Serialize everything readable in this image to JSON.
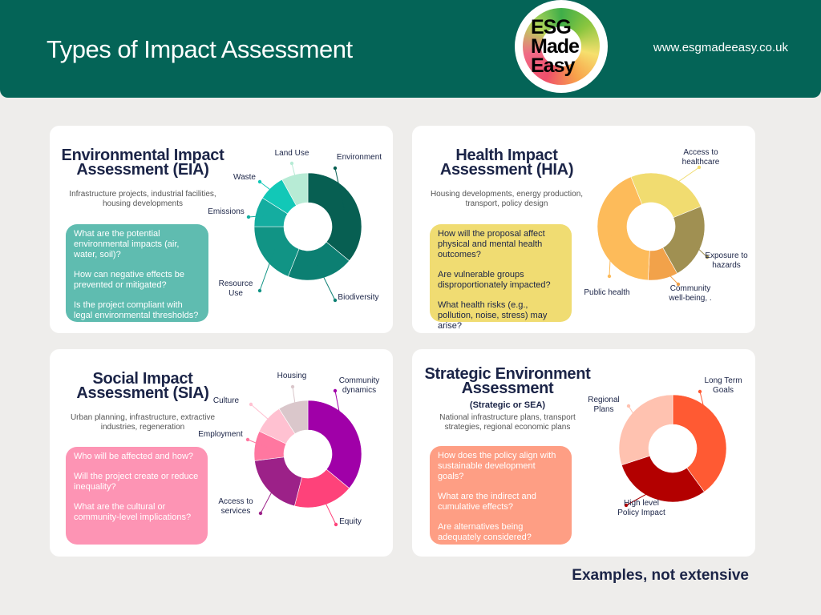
{
  "header": {
    "title": "Types of Impact Assessment",
    "url": "www.esgmadeeasy.co.uk",
    "logo_text": "ESG Made Easy",
    "background": "#046457"
  },
  "cards": [
    {
      "title": "Environmental Impact Assessment (EIA)",
      "note": "",
      "subtitle": "Infrastructure projects, industrial facilities, housing developments",
      "box_color": "#5fbcb0",
      "questions": [
        "What are the potential environmental impacts (air, water, soil)?",
        "How can negative effects be prevented or mitigated?",
        "Is the project compliant with legal environmental thresholds?"
      ],
      "chart": {
        "type": "donut",
        "start_angle": 0,
        "segments": [
          {
            "label": "Environment",
            "share": 0.36,
            "color": "#075f52"
          },
          {
            "label": "Biodiversity",
            "share": 0.2,
            "color": "#0c7f72"
          },
          {
            "label": "Resource Use",
            "share": 0.19,
            "color": "#119485"
          },
          {
            "label": "Emissions",
            "share": 0.09,
            "color": "#14ada0"
          },
          {
            "label": "Waste",
            "share": 0.08,
            "color": "#12c8b7"
          },
          {
            "label": "Land Use",
            "share": 0.08,
            "color": "#b7ebd5"
          }
        ]
      }
    },
    {
      "title": "Health Impact Assessment (HIA)",
      "note": "",
      "subtitle": "Housing developments, energy production, transport, policy design",
      "box_color": "#f0dc72",
      "questions": [
        "How will the proposal affect physical and mental health outcomes?",
        "Are vulnerable groups disproportionately impacted?",
        "What health risks (e.g., pollution, noise, stress) may arise?"
      ],
      "chart": {
        "type": "donut",
        "start_angle": -22,
        "segments": [
          {
            "label": "Access to healthcare",
            "share": 0.25,
            "color": "#f1dc70"
          },
          {
            "label": "Exposure to hazards",
            "share": 0.23,
            "color": "#a09052"
          },
          {
            "label": "Community well-being, .",
            "share": 0.09,
            "color": "#f2a24a"
          },
          {
            "label": "Public health",
            "share": 0.43,
            "color": "#fdbb5a"
          }
        ]
      }
    },
    {
      "title": "Social Impact Assessment (SIA)",
      "note": "",
      "subtitle": "Urban planning, infrastructure, extractive industries, regeneration",
      "box_color": "#fd94b4",
      "questions": [
        "Who will be affected and how?",
        "Will the project create or reduce inequality?",
        "What are the cultural or community-level implications?"
      ],
      "chart": {
        "type": "donut",
        "start_angle": 0,
        "segments": [
          {
            "label": "Community dynamics",
            "share": 0.36,
            "color": "#a000a8"
          },
          {
            "label": "Equity",
            "share": 0.18,
            "color": "#fe427a"
          },
          {
            "label": "Access to services",
            "share": 0.19,
            "color": "#9c2188"
          },
          {
            "label": "Employment",
            "share": 0.09,
            "color": "#ff77a0"
          },
          {
            "label": "Culture",
            "share": 0.09,
            "color": "#ffc1d1"
          },
          {
            "label": "Housing",
            "share": 0.09,
            "color": "#dac7cb"
          }
        ]
      }
    },
    {
      "title": "Strategic Environment Assessment",
      "note": "(Strategic or SEA)",
      "subtitle": "National infrastructure plans, transport strategies, regional economic plans",
      "box_color": "#fe9e84",
      "questions": [
        "How does the policy align with sustainable development goals?",
        "What are the indirect and cumulative effects?",
        "Are alternatives being adequately considered?"
      ],
      "chart": {
        "type": "donut",
        "start_angle": 0,
        "segments": [
          {
            "label": "Long Term Goals",
            "share": 0.4,
            "color": "#ff5a33"
          },
          {
            "label": "High level Policy Impact",
            "share": 0.3,
            "color": "#b30000"
          },
          {
            "label": "Regional Plans",
            "share": 0.3,
            "color": "#ffc2b0"
          }
        ]
      }
    }
  ],
  "footer": {
    "note": "Examples, not extensive"
  }
}
